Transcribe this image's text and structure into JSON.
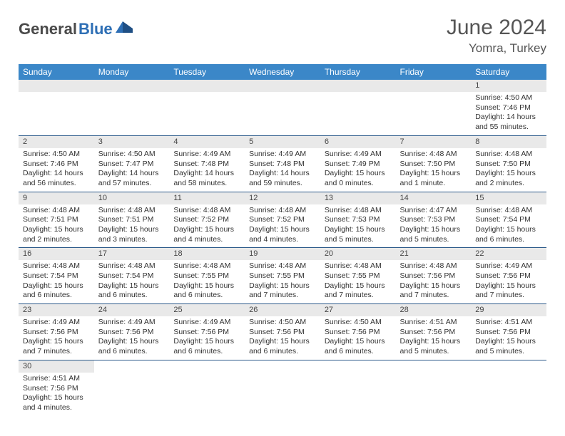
{
  "logo": {
    "text_dark": "General",
    "text_blue": "Blue"
  },
  "title": "June 2024",
  "location": "Yomra, Turkey",
  "header_bg": "#3b87c8",
  "daynum_bg": "#e9e9e9",
  "divider_color": "#2c5a8a",
  "day_headers": [
    "Sunday",
    "Monday",
    "Tuesday",
    "Wednesday",
    "Thursday",
    "Friday",
    "Saturday"
  ],
  "weeks": [
    [
      null,
      null,
      null,
      null,
      null,
      null,
      {
        "n": "1",
        "sr": "Sunrise: 4:50 AM",
        "ss": "Sunset: 7:46 PM",
        "dl": "Daylight: 14 hours and 55 minutes."
      }
    ],
    [
      {
        "n": "2",
        "sr": "Sunrise: 4:50 AM",
        "ss": "Sunset: 7:46 PM",
        "dl": "Daylight: 14 hours and 56 minutes."
      },
      {
        "n": "3",
        "sr": "Sunrise: 4:50 AM",
        "ss": "Sunset: 7:47 PM",
        "dl": "Daylight: 14 hours and 57 minutes."
      },
      {
        "n": "4",
        "sr": "Sunrise: 4:49 AM",
        "ss": "Sunset: 7:48 PM",
        "dl": "Daylight: 14 hours and 58 minutes."
      },
      {
        "n": "5",
        "sr": "Sunrise: 4:49 AM",
        "ss": "Sunset: 7:48 PM",
        "dl": "Daylight: 14 hours and 59 minutes."
      },
      {
        "n": "6",
        "sr": "Sunrise: 4:49 AM",
        "ss": "Sunset: 7:49 PM",
        "dl": "Daylight: 15 hours and 0 minutes."
      },
      {
        "n": "7",
        "sr": "Sunrise: 4:48 AM",
        "ss": "Sunset: 7:50 PM",
        "dl": "Daylight: 15 hours and 1 minute."
      },
      {
        "n": "8",
        "sr": "Sunrise: 4:48 AM",
        "ss": "Sunset: 7:50 PM",
        "dl": "Daylight: 15 hours and 2 minutes."
      }
    ],
    [
      {
        "n": "9",
        "sr": "Sunrise: 4:48 AM",
        "ss": "Sunset: 7:51 PM",
        "dl": "Daylight: 15 hours and 2 minutes."
      },
      {
        "n": "10",
        "sr": "Sunrise: 4:48 AM",
        "ss": "Sunset: 7:51 PM",
        "dl": "Daylight: 15 hours and 3 minutes."
      },
      {
        "n": "11",
        "sr": "Sunrise: 4:48 AM",
        "ss": "Sunset: 7:52 PM",
        "dl": "Daylight: 15 hours and 4 minutes."
      },
      {
        "n": "12",
        "sr": "Sunrise: 4:48 AM",
        "ss": "Sunset: 7:52 PM",
        "dl": "Daylight: 15 hours and 4 minutes."
      },
      {
        "n": "13",
        "sr": "Sunrise: 4:48 AM",
        "ss": "Sunset: 7:53 PM",
        "dl": "Daylight: 15 hours and 5 minutes."
      },
      {
        "n": "14",
        "sr": "Sunrise: 4:47 AM",
        "ss": "Sunset: 7:53 PM",
        "dl": "Daylight: 15 hours and 5 minutes."
      },
      {
        "n": "15",
        "sr": "Sunrise: 4:48 AM",
        "ss": "Sunset: 7:54 PM",
        "dl": "Daylight: 15 hours and 6 minutes."
      }
    ],
    [
      {
        "n": "16",
        "sr": "Sunrise: 4:48 AM",
        "ss": "Sunset: 7:54 PM",
        "dl": "Daylight: 15 hours and 6 minutes."
      },
      {
        "n": "17",
        "sr": "Sunrise: 4:48 AM",
        "ss": "Sunset: 7:54 PM",
        "dl": "Daylight: 15 hours and 6 minutes."
      },
      {
        "n": "18",
        "sr": "Sunrise: 4:48 AM",
        "ss": "Sunset: 7:55 PM",
        "dl": "Daylight: 15 hours and 6 minutes."
      },
      {
        "n": "19",
        "sr": "Sunrise: 4:48 AM",
        "ss": "Sunset: 7:55 PM",
        "dl": "Daylight: 15 hours and 7 minutes."
      },
      {
        "n": "20",
        "sr": "Sunrise: 4:48 AM",
        "ss": "Sunset: 7:55 PM",
        "dl": "Daylight: 15 hours and 7 minutes."
      },
      {
        "n": "21",
        "sr": "Sunrise: 4:48 AM",
        "ss": "Sunset: 7:56 PM",
        "dl": "Daylight: 15 hours and 7 minutes."
      },
      {
        "n": "22",
        "sr": "Sunrise: 4:49 AM",
        "ss": "Sunset: 7:56 PM",
        "dl": "Daylight: 15 hours and 7 minutes."
      }
    ],
    [
      {
        "n": "23",
        "sr": "Sunrise: 4:49 AM",
        "ss": "Sunset: 7:56 PM",
        "dl": "Daylight: 15 hours and 7 minutes."
      },
      {
        "n": "24",
        "sr": "Sunrise: 4:49 AM",
        "ss": "Sunset: 7:56 PM",
        "dl": "Daylight: 15 hours and 6 minutes."
      },
      {
        "n": "25",
        "sr": "Sunrise: 4:49 AM",
        "ss": "Sunset: 7:56 PM",
        "dl": "Daylight: 15 hours and 6 minutes."
      },
      {
        "n": "26",
        "sr": "Sunrise: 4:50 AM",
        "ss": "Sunset: 7:56 PM",
        "dl": "Daylight: 15 hours and 6 minutes."
      },
      {
        "n": "27",
        "sr": "Sunrise: 4:50 AM",
        "ss": "Sunset: 7:56 PM",
        "dl": "Daylight: 15 hours and 6 minutes."
      },
      {
        "n": "28",
        "sr": "Sunrise: 4:51 AM",
        "ss": "Sunset: 7:56 PM",
        "dl": "Daylight: 15 hours and 5 minutes."
      },
      {
        "n": "29",
        "sr": "Sunrise: 4:51 AM",
        "ss": "Sunset: 7:56 PM",
        "dl": "Daylight: 15 hours and 5 minutes."
      }
    ],
    [
      {
        "n": "30",
        "sr": "Sunrise: 4:51 AM",
        "ss": "Sunset: 7:56 PM",
        "dl": "Daylight: 15 hours and 4 minutes."
      },
      null,
      null,
      null,
      null,
      null,
      null
    ]
  ]
}
